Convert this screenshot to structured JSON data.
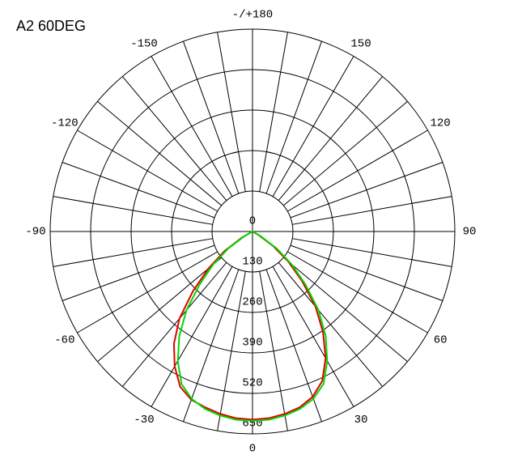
{
  "chart_data": {
    "type": "polar",
    "title": "A2 60DEG",
    "x": [
      -65,
      -60,
      -55,
      -50,
      -45,
      -40,
      -35,
      -30,
      -25,
      -20,
      -15,
      -10,
      -5,
      0,
      5,
      10,
      15,
      20,
      25,
      30,
      35,
      40,
      45,
      50,
      55,
      60,
      65
    ],
    "series": [
      {
        "color": "#e00000",
        "values": [
          0,
          40,
          110,
          185,
          270,
          365,
          440,
          500,
          550,
          575,
          585,
          595,
          602,
          604,
          602,
          595,
          585,
          565,
          530,
          470,
          395,
          315,
          225,
          150,
          80,
          20,
          0
        ]
      },
      {
        "color": "#00d800",
        "values": [
          0,
          30,
          95,
          165,
          240,
          330,
          410,
          480,
          540,
          572,
          590,
          600,
          607,
          608,
          607,
          600,
          590,
          572,
          540,
          480,
          410,
          330,
          240,
          165,
          95,
          30,
          0
        ]
      }
    ],
    "ylim": [
      0,
      650
    ],
    "yticks": [
      0,
      130,
      260,
      390,
      520,
      650
    ],
    "xticks": [
      -150,
      -120,
      -90,
      -60,
      -30,
      0,
      30,
      60,
      90,
      120,
      150,
      {
        "value": 180,
        "label": "-/+180"
      }
    ],
    "minor_xticks": [
      -170,
      -160,
      -140,
      -130,
      -110,
      -100,
      -80,
      -70,
      -50,
      -40,
      -20,
      -10,
      10,
      20,
      40,
      50,
      70,
      80,
      100,
      110,
      130,
      140,
      160,
      170
    ],
    "grid": true
  }
}
